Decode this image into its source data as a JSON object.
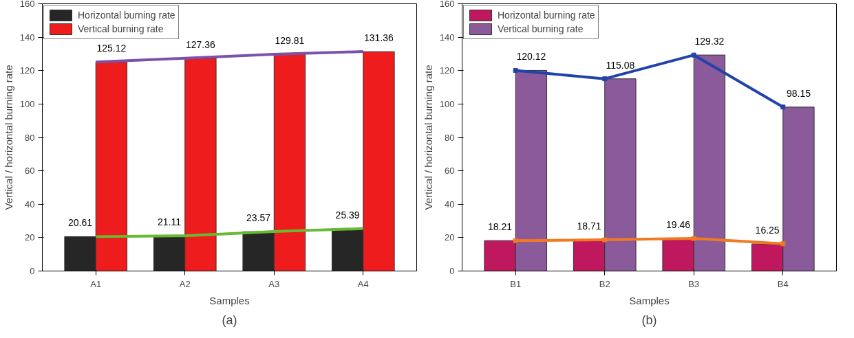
{
  "chart_data": [
    {
      "type": "bar",
      "title": "(a)",
      "xlabel": "Samples",
      "ylabel": "Vertical / horizontal burning rate",
      "categories": [
        "A1",
        "A2",
        "A3",
        "A4"
      ],
      "ylim": [
        0,
        160
      ],
      "yticks": [
        0,
        20,
        40,
        60,
        80,
        100,
        120,
        140,
        160
      ],
      "grid": false,
      "legend": "top left",
      "series": [
        {
          "name": "Horizontal burning rate",
          "color": "#262626",
          "values": [
            20.61,
            21.11,
            23.57,
            25.39
          ],
          "value_labels": [
            "20.61",
            "21.11",
            "23.57",
            "25.39"
          ]
        },
        {
          "name": "Vertical burning rate",
          "color": "#ee1c1c",
          "values": [
            125.12,
            127.36,
            129.81,
            131.36
          ],
          "value_labels": [
            "125.12",
            "127.36",
            "129.81",
            "131.36"
          ]
        },
        {
          "type": "line",
          "color": "#66bb33",
          "x": [
            "A1",
            "A2",
            "A3",
            "A4"
          ],
          "values": [
            20.6,
            21.1,
            23.6,
            25.4
          ]
        },
        {
          "type": "line",
          "color": "#7b52ab",
          "x": [
            "A1",
            "A2",
            "A3",
            "A4"
          ],
          "values": [
            125.1,
            127.4,
            129.8,
            131.4
          ]
        }
      ]
    },
    {
      "type": "bar",
      "title": "(b)",
      "xlabel": "Samples",
      "ylabel": "Vertical / horizontal burning rate",
      "categories": [
        "B1",
        "B2",
        "B3",
        "B4"
      ],
      "ylim": [
        0,
        160
      ],
      "yticks": [
        0,
        20,
        40,
        60,
        80,
        100,
        120,
        140,
        160
      ],
      "grid": false,
      "legend": "top left",
      "marker": "square",
      "series": [
        {
          "name": "Horizontal burning rate",
          "color": "#c0185e",
          "values": [
            18.21,
            18.71,
            19.46,
            16.25
          ],
          "value_labels": [
            "18.21",
            "18.71",
            "19.46",
            "16.25"
          ]
        },
        {
          "name": "Vertical burning rate",
          "color": "#8a5a9a",
          "values": [
            120.12,
            115.08,
            129.32,
            98.15
          ],
          "value_labels": [
            "120.12",
            "115.08",
            "129.32",
            "98.15"
          ]
        },
        {
          "type": "line",
          "color": "#f07a20",
          "x": [
            "B1",
            "B2",
            "B3",
            "B4"
          ],
          "values": [
            18.2,
            18.7,
            19.5,
            16.3
          ]
        },
        {
          "type": "line",
          "color": "#2244aa",
          "x": [
            "B1",
            "B2",
            "B3",
            "B4"
          ],
          "values": [
            120.1,
            115.1,
            129.3,
            98.2
          ]
        }
      ]
    }
  ]
}
